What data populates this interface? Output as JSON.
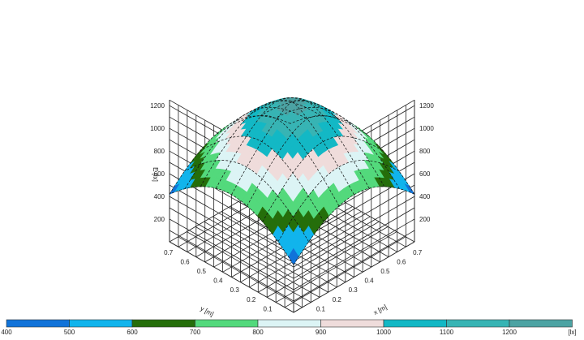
{
  "chart_data": {
    "type": "surface",
    "zlabel": "E [lx]",
    "xlabel": "x [m]",
    "ylabel": "y [m]",
    "zticks": [
      200,
      400,
      600,
      800,
      1000,
      1200
    ],
    "xticks": [
      0.1,
      0.2,
      0.3,
      0.4,
      0.5,
      0.6,
      0.7
    ],
    "yticks": [
      0.1,
      0.2,
      0.3,
      0.4,
      0.5,
      0.6,
      0.7
    ],
    "x_range": [
      0,
      0.75
    ],
    "y_range": [
      0,
      0.75
    ],
    "z_range": [
      0,
      1250
    ],
    "peak_value": 1240,
    "corner_value": 420,
    "peak_location": [
      0.375,
      0.375
    ],
    "color_scale": {
      "bins": [
        400,
        500,
        600,
        700,
        800,
        900,
        1000,
        1100,
        1200
      ],
      "labels": [
        "400",
        "500",
        "600",
        "700",
        "800",
        "900",
        "1000",
        "1100",
        "1200",
        "[lx]"
      ],
      "colors": [
        "#1173d9",
        "#11b4ec",
        "#256e0b",
        "#53d97c",
        "#dcf4f5",
        "#efdcdb",
        "#13b8c5",
        "#37b4b4",
        "#4ca3a3"
      ]
    }
  }
}
